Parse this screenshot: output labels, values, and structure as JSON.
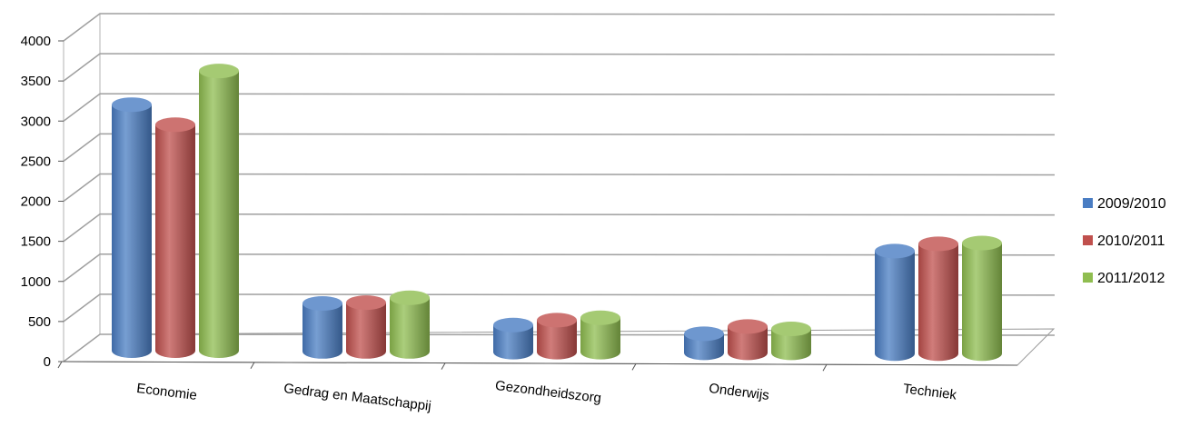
{
  "chart_data": {
    "type": "bar",
    "style": "3d-cylinder",
    "categories": [
      "Economie",
      "Gedrag en Maatschappij",
      "Gezondheidszorg",
      "Onderwijs",
      "Techniek"
    ],
    "series": [
      {
        "name": "2009/2010",
        "color": "#4a7dc3",
        "values": [
          3250,
          780,
          520,
          420,
          1460
        ]
      },
      {
        "name": "2010/2011",
        "color": "#c0504d",
        "values": [
          3000,
          790,
          580,
          510,
          1550
        ]
      },
      {
        "name": "2011/2012",
        "color": "#8fbd50",
        "values": [
          3670,
          850,
          610,
          480,
          1560
        ]
      }
    ],
    "yticks": [
      "0",
      "500",
      "1000",
      "1500",
      "2000",
      "2500",
      "3000",
      "3500",
      "4000"
    ],
    "ylim": [
      0,
      4000
    ],
    "grid": true,
    "legend_position": "right"
  }
}
